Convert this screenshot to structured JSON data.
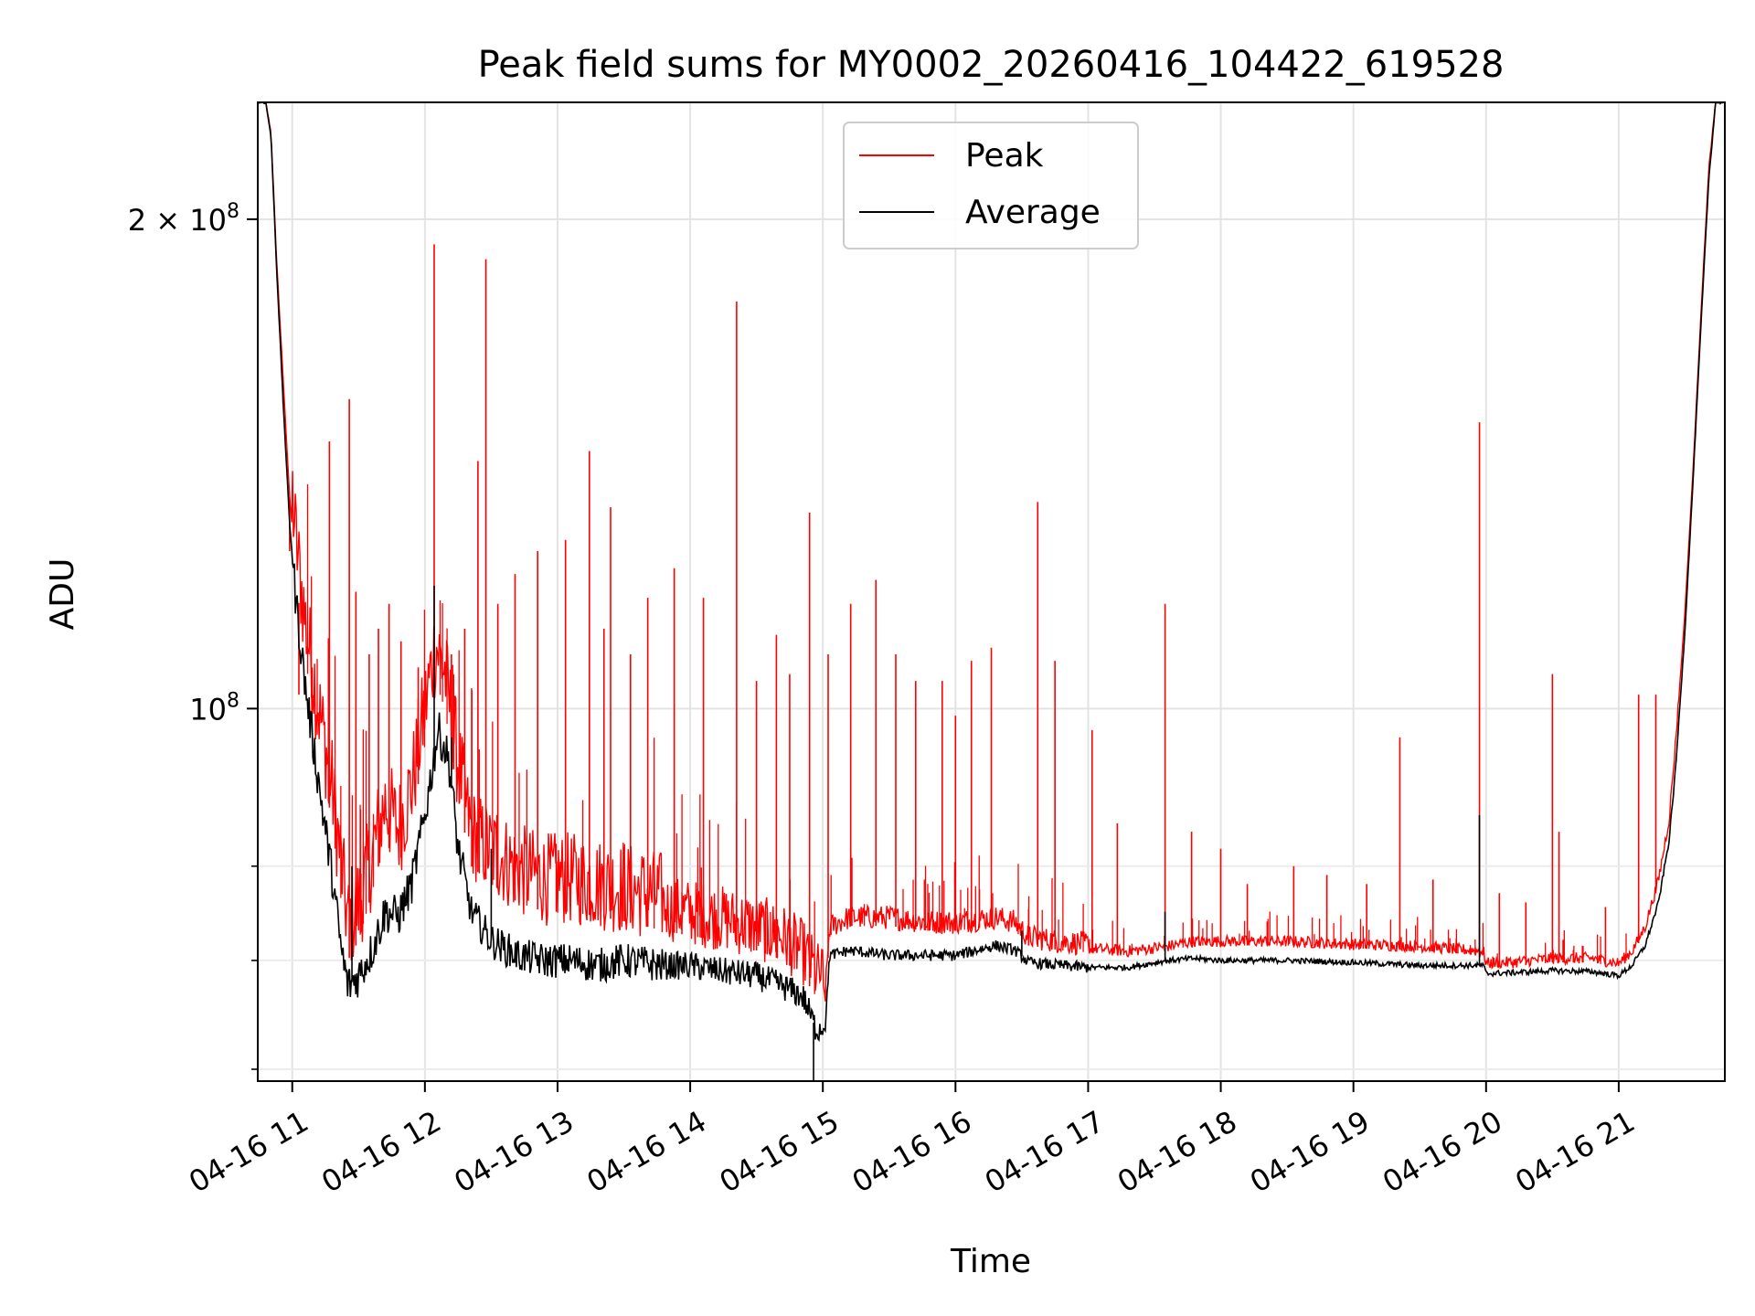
{
  "chart_data": {
    "type": "line",
    "title": "Peak field sums for MY0002_20260416_104422_619528",
    "xlabel": "Time",
    "ylabel": "ADU",
    "y_scale": "log",
    "ylim": [
      59000000,
      236000000
    ],
    "xlim_hours": [
      10.74,
      21.8
    ],
    "grid": true,
    "legend_position": "top-center",
    "x_ticks": [
      {
        "value": 11,
        "label": "04-16 11"
      },
      {
        "value": 12,
        "label": "04-16 12"
      },
      {
        "value": 13,
        "label": "04-16 13"
      },
      {
        "value": 14,
        "label": "04-16 14"
      },
      {
        "value": 15,
        "label": "04-16 15"
      },
      {
        "value": 16,
        "label": "04-16 16"
      },
      {
        "value": 17,
        "label": "04-16 17"
      },
      {
        "value": 18,
        "label": "04-16 18"
      },
      {
        "value": 19,
        "label": "04-16 19"
      },
      {
        "value": 20,
        "label": "04-16 20"
      },
      {
        "value": 21,
        "label": "04-16 21"
      }
    ],
    "y_major_ticks": [
      {
        "value": 100000000,
        "base": "10",
        "exp": "8"
      },
      {
        "value": 200000000,
        "base": "2 × 10",
        "exp": "8"
      }
    ],
    "y_minor_ticks": [
      60000000,
      70000000,
      80000000
    ],
    "series": [
      {
        "name": "Peak",
        "color": "#ff0000",
        "points": [
          [
            10.74,
            236000000
          ],
          [
            10.8,
            236000000
          ],
          [
            10.84,
            226000000
          ],
          [
            10.88,
            190000000
          ],
          [
            10.93,
            160000000
          ],
          [
            10.98,
            135000000
          ],
          [
            11.03,
            120000000
          ],
          [
            11.1,
            107000000
          ],
          [
            11.2,
            95000000
          ],
          [
            11.3,
            85000000
          ],
          [
            11.37,
            76000000
          ],
          [
            11.42,
            70000000
          ],
          [
            11.5,
            72000000
          ],
          [
            11.6,
            77000000
          ],
          [
            11.7,
            83000000
          ],
          [
            11.8,
            80000000
          ],
          [
            11.9,
            85000000
          ],
          [
            12.0,
            95000000
          ],
          [
            12.08,
            104000000
          ],
          [
            12.15,
            100000000
          ],
          [
            12.25,
            88000000
          ],
          [
            12.35,
            80000000
          ],
          [
            12.5,
            78000000
          ],
          [
            12.7,
            76000000
          ],
          [
            12.9,
            75000000
          ],
          [
            13.1,
            75000000
          ],
          [
            13.3,
            74500000
          ],
          [
            13.5,
            74000000
          ],
          [
            13.8,
            73000000
          ],
          [
            14.0,
            72500000
          ],
          [
            14.2,
            72000000
          ],
          [
            14.5,
            71000000
          ],
          [
            14.7,
            70000000
          ],
          [
            14.85,
            68500000
          ],
          [
            14.95,
            66500000
          ],
          [
            15.02,
            66000000
          ],
          [
            15.05,
            72500000
          ],
          [
            15.2,
            73500000
          ],
          [
            15.5,
            73500000
          ],
          [
            15.8,
            73000000
          ],
          [
            16.0,
            73000000
          ],
          [
            16.3,
            73500000
          ],
          [
            16.45,
            73000000
          ],
          [
            16.55,
            71500000
          ],
          [
            16.8,
            71000000
          ],
          [
            17.0,
            70800000
          ],
          [
            17.3,
            70500000
          ],
          [
            17.6,
            71000000
          ],
          [
            17.8,
            71500000
          ],
          [
            18.0,
            71500000
          ],
          [
            18.5,
            71500000
          ],
          [
            19.0,
            71200000
          ],
          [
            19.5,
            71000000
          ],
          [
            19.98,
            70500000
          ],
          [
            20.0,
            69300000
          ],
          [
            20.2,
            69400000
          ],
          [
            20.5,
            69800000
          ],
          [
            20.8,
            69800000
          ],
          [
            21.0,
            69300000
          ],
          [
            21.1,
            70500000
          ],
          [
            21.2,
            73000000
          ],
          [
            21.3,
            78000000
          ],
          [
            21.38,
            85000000
          ],
          [
            21.43,
            95000000
          ],
          [
            21.5,
            115000000
          ],
          [
            21.56,
            140000000
          ],
          [
            21.62,
            175000000
          ],
          [
            21.68,
            215000000
          ],
          [
            21.73,
            236000000
          ],
          [
            21.8,
            236000000
          ]
        ],
        "spikes": [
          [
            10.93,
            154000000
          ],
          [
            10.98,
            125000000
          ],
          [
            11.05,
            102000000
          ],
          [
            11.15,
            106000000
          ],
          [
            11.28,
            146000000
          ],
          [
            11.43,
            155000000
          ],
          [
            11.48,
            118000000
          ],
          [
            11.58,
            108000000
          ],
          [
            11.65,
            112000000
          ],
          [
            11.73,
            116000000
          ],
          [
            11.82,
            110000000
          ],
          [
            11.95,
            106000000
          ],
          [
            12.07,
            193000000
          ],
          [
            12.2,
            108000000
          ],
          [
            12.3,
            112000000
          ],
          [
            12.4,
            142000000
          ],
          [
            12.46,
            189000000
          ],
          [
            12.55,
            116000000
          ],
          [
            12.68,
            121000000
          ],
          [
            12.85,
            125000000
          ],
          [
            13.06,
            127000000
          ],
          [
            13.24,
            144000000
          ],
          [
            13.35,
            112000000
          ],
          [
            13.4,
            133000000
          ],
          [
            13.55,
            108000000
          ],
          [
            13.68,
            117000000
          ],
          [
            13.88,
            122000000
          ],
          [
            14.1,
            117000000
          ],
          [
            14.35,
            178000000
          ],
          [
            14.5,
            104000000
          ],
          [
            14.65,
            111000000
          ],
          [
            14.75,
            105000000
          ],
          [
            14.9,
            132000000
          ],
          [
            15.04,
            108000000
          ],
          [
            15.21,
            116000000
          ],
          [
            15.4,
            120000000
          ],
          [
            15.55,
            108000000
          ],
          [
            15.7,
            104000000
          ],
          [
            15.9,
            104000000
          ],
          [
            16.0,
            99000000
          ],
          [
            16.12,
            107000000
          ],
          [
            16.27,
            109000000
          ],
          [
            16.62,
            134000000
          ],
          [
            16.75,
            107000000
          ],
          [
            17.03,
            97000000
          ],
          [
            17.22,
            85000000
          ],
          [
            17.58,
            116000000
          ],
          [
            17.78,
            84000000
          ],
          [
            18.0,
            82000000
          ],
          [
            18.2,
            78000000
          ],
          [
            18.55,
            80000000
          ],
          [
            18.8,
            79000000
          ],
          [
            19.1,
            78000000
          ],
          [
            19.35,
            96000000
          ],
          [
            19.6,
            78500000
          ],
          [
            19.95,
            150000000
          ],
          [
            20.1,
            77000000
          ],
          [
            20.3,
            76000000
          ],
          [
            20.5,
            105000000
          ],
          [
            20.55,
            84000000
          ],
          [
            20.9,
            75500000
          ],
          [
            21.15,
            102000000
          ],
          [
            21.28,
            102000000
          ]
        ]
      },
      {
        "name": "Average",
        "color": "#000000",
        "points": [
          [
            10.74,
            236000000
          ],
          [
            10.8,
            236000000
          ],
          [
            10.84,
            225000000
          ],
          [
            10.88,
            188000000
          ],
          [
            10.93,
            155000000
          ],
          [
            10.98,
            130000000
          ],
          [
            11.03,
            116000000
          ],
          [
            11.1,
            103000000
          ],
          [
            11.2,
            90000000
          ],
          [
            11.3,
            79000000
          ],
          [
            11.37,
            71000000
          ],
          [
            11.42,
            67500000
          ],
          [
            11.5,
            68500000
          ],
          [
            11.6,
            71000000
          ],
          [
            11.7,
            75000000
          ],
          [
            11.8,
            74500000
          ],
          [
            11.9,
            78000000
          ],
          [
            12.0,
            86000000
          ],
          [
            12.1,
            97000000
          ],
          [
            12.18,
            93000000
          ],
          [
            12.25,
            82000000
          ],
          [
            12.35,
            75000000
          ],
          [
            12.5,
            72000000
          ],
          [
            12.7,
            70500000
          ],
          [
            12.9,
            70000000
          ],
          [
            13.1,
            70000000
          ],
          [
            13.3,
            69500000
          ],
          [
            13.5,
            70000000
          ],
          [
            13.8,
            69500000
          ],
          [
            14.0,
            69500000
          ],
          [
            14.2,
            69000000
          ],
          [
            14.5,
            68500000
          ],
          [
            14.7,
            67500000
          ],
          [
            14.85,
            66500000
          ],
          [
            14.95,
            63500000
          ],
          [
            15.02,
            63800000
          ],
          [
            15.05,
            70500000
          ],
          [
            15.2,
            71000000
          ],
          [
            15.5,
            70500000
          ],
          [
            15.8,
            70500000
          ],
          [
            16.0,
            70500000
          ],
          [
            16.3,
            71500000
          ],
          [
            16.45,
            71000000
          ],
          [
            16.55,
            69800000
          ],
          [
            16.8,
            69500000
          ],
          [
            17.0,
            69300000
          ],
          [
            17.3,
            69300000
          ],
          [
            17.6,
            70000000
          ],
          [
            17.8,
            70200000
          ],
          [
            18.0,
            70000000
          ],
          [
            18.5,
            70000000
          ],
          [
            19.0,
            69800000
          ],
          [
            19.5,
            69500000
          ],
          [
            19.98,
            69500000
          ],
          [
            20.0,
            68700000
          ],
          [
            20.2,
            68800000
          ],
          [
            20.5,
            69000000
          ],
          [
            20.8,
            68900000
          ],
          [
            21.0,
            68500000
          ],
          [
            21.1,
            69500000
          ],
          [
            21.2,
            71500000
          ],
          [
            21.3,
            76000000
          ],
          [
            21.38,
            83000000
          ],
          [
            21.43,
            92000000
          ],
          [
            21.5,
            112000000
          ],
          [
            21.56,
            138000000
          ],
          [
            21.62,
            172000000
          ],
          [
            21.68,
            212000000
          ],
          [
            21.73,
            236000000
          ],
          [
            21.8,
            236000000
          ]
        ],
        "spikes": [
          [
            12.07,
            119000000
          ],
          [
            12.2,
            96000000
          ],
          [
            11.45,
            80000000
          ],
          [
            12.5,
            82000000
          ],
          [
            14.93,
            59000000
          ],
          [
            16.5,
            73000000
          ],
          [
            17.58,
            75000000
          ],
          [
            19.95,
            86000000
          ]
        ]
      }
    ]
  }
}
